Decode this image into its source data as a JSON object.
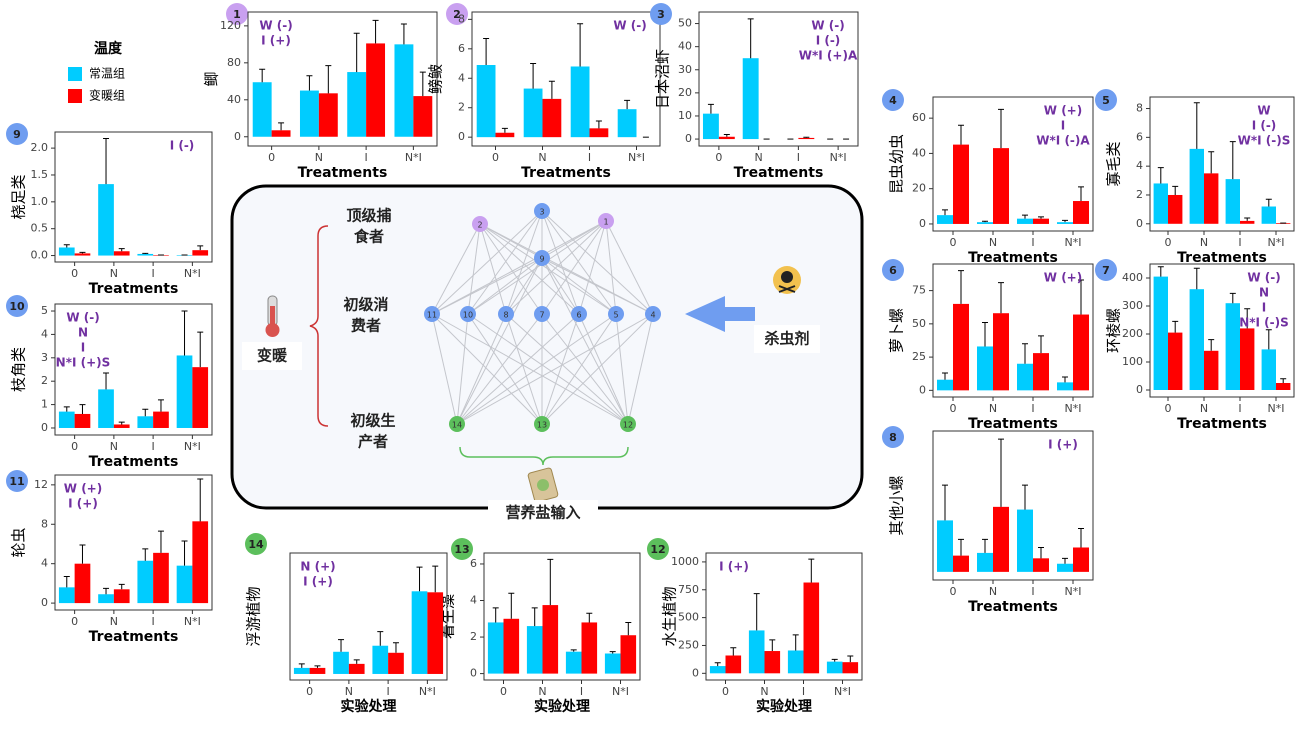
{
  "legend": {
    "title": "温度"
  },
  "chart_data": [
    {
      "type": "bar",
      "label": "1",
      "badge_color": "#c9a0f0",
      "ylabel": "鲫",
      "xlabel": "Treatments",
      "categories": [
        "0",
        "N",
        "I",
        "N*I"
      ],
      "series": [
        {
          "name": "常温组",
          "color": "#00ccff",
          "values": [
            59,
            50,
            70,
            100
          ],
          "errors": [
            14,
            16,
            42,
            22
          ]
        },
        {
          "name": "变暖组",
          "color": "#ff0000",
          "values": [
            7,
            47,
            101,
            44
          ],
          "errors": [
            8,
            30,
            25,
            26
          ]
        }
      ],
      "ylim": [
        -10,
        135
      ],
      "yticks": [
        0,
        40,
        80,
        120
      ],
      "annotations": [
        "W (-)",
        "I (+)"
      ],
      "annotation_corner": "top-left"
    },
    {
      "type": "bar",
      "label": "2",
      "badge_color": "#c9a0f0",
      "ylabel": "鳑鲏",
      "xlabel": "Treatments",
      "categories": [
        "0",
        "N",
        "I",
        "N*I"
      ],
      "series": [
        {
          "name": "常温组",
          "color": "#00ccff",
          "values": [
            4.9,
            3.3,
            4.8,
            1.9
          ],
          "errors": [
            1.8,
            1.7,
            2.9,
            0.6
          ]
        },
        {
          "name": "变暖组",
          "color": "#ff0000",
          "values": [
            0.3,
            2.6,
            0.6,
            0
          ],
          "errors": [
            0.3,
            1.2,
            0.5,
            0
          ]
        }
      ],
      "ylim": [
        -0.6,
        8.5
      ],
      "yticks": [
        0,
        2,
        4,
        6,
        8
      ],
      "annotations": [
        "W (-)"
      ],
      "annotation_corner": "top-right"
    },
    {
      "type": "bar",
      "label": "3",
      "badge_color": "#6f9df0",
      "ylabel": "日本沼虾",
      "xlabel": "Treatments",
      "categories": [
        "0",
        "N",
        "I",
        "N*I"
      ],
      "series": [
        {
          "name": "常温组",
          "color": "#00ccff",
          "values": [
            11,
            35,
            0,
            0
          ],
          "errors": [
            4,
            17,
            0,
            0
          ]
        },
        {
          "name": "变暖组",
          "color": "#ff0000",
          "values": [
            1,
            0,
            0.5,
            0
          ],
          "errors": [
            1,
            0,
            0.3,
            0
          ]
        }
      ],
      "ylim": [
        -3,
        55
      ],
      "yticks": [
        0,
        10,
        20,
        30,
        40,
        50
      ],
      "annotations": [
        "W (-)",
        "I (-)",
        "W*I (+)A"
      ],
      "annotation_corner": "top-right"
    },
    {
      "type": "bar",
      "label": "4",
      "badge_color": "#6f9df0",
      "ylabel": "昆虫幼虫",
      "xlabel": "Treatments",
      "categories": [
        "0",
        "N",
        "I",
        "N*I"
      ],
      "series": [
        {
          "name": "常温组",
          "color": "#00ccff",
          "values": [
            5,
            1,
            3,
            1
          ],
          "errors": [
            3,
            0.5,
            2,
            1
          ]
        },
        {
          "name": "变暖组",
          "color": "#ff0000",
          "values": [
            45,
            43,
            3,
            13
          ],
          "errors": [
            11,
            22,
            1,
            8
          ]
        }
      ],
      "ylim": [
        -4,
        72
      ],
      "yticks": [
        0,
        20,
        40,
        60
      ],
      "annotations": [
        "W (+)",
        "I",
        "W*I (-)A"
      ],
      "annotation_corner": "top-right"
    },
    {
      "type": "bar",
      "label": "5",
      "badge_color": "#6f9df0",
      "ylabel": "寡毛类",
      "xlabel": "Treatments",
      "categories": [
        "0",
        "N",
        "I",
        "N*I"
      ],
      "series": [
        {
          "name": "常温组",
          "color": "#00ccff",
          "values": [
            2.8,
            5.2,
            3.1,
            1.2
          ],
          "errors": [
            1.1,
            3.2,
            2.6,
            0.5
          ]
        },
        {
          "name": "变暖组",
          "color": "#ff0000",
          "values": [
            2.0,
            3.5,
            0.2,
            0.05
          ],
          "errors": [
            0.6,
            1.5,
            0.2,
            0
          ]
        }
      ],
      "ylim": [
        -0.5,
        8.8
      ],
      "yticks": [
        0,
        2,
        4,
        6,
        8
      ],
      "annotations": [
        "W",
        "I (-)",
        "W*I (-)S"
      ],
      "annotation_corner": "top-right"
    },
    {
      "type": "bar",
      "label": "6",
      "badge_color": "#6f9df0",
      "ylabel": "萝卜螺",
      "xlabel": "Treatments",
      "categories": [
        "0",
        "N",
        "I",
        "N*I"
      ],
      "series": [
        {
          "name": "常温组",
          "color": "#00ccff",
          "values": [
            8,
            33,
            20,
            6
          ],
          "errors": [
            5,
            18,
            15,
            4
          ]
        },
        {
          "name": "变暖组",
          "color": "#ff0000",
          "values": [
            65,
            58,
            28,
            57
          ],
          "errors": [
            25,
            23,
            13,
            26
          ]
        }
      ],
      "ylim": [
        -5,
        95
      ],
      "yticks": [
        0,
        25,
        50,
        75
      ],
      "annotations": [
        "W (+)"
      ],
      "annotation_corner": "top-right"
    },
    {
      "type": "bar",
      "label": "7",
      "badge_color": "#6f9df0",
      "ylabel": "环棱螺",
      "xlabel": "Treatments",
      "categories": [
        "0",
        "N",
        "I",
        "N*I"
      ],
      "series": [
        {
          "name": "常温组",
          "color": "#00ccff",
          "values": [
            405,
            360,
            310,
            145
          ],
          "errors": [
            35,
            75,
            35,
            70
          ]
        },
        {
          "name": "变暖组",
          "color": "#ff0000",
          "values": [
            205,
            140,
            220,
            25
          ],
          "errors": [
            40,
            40,
            70,
            15
          ]
        }
      ],
      "ylim": [
        -25,
        450
      ],
      "yticks": [
        0,
        100,
        200,
        300,
        400
      ],
      "annotations": [
        "W (-)",
        "N",
        "I",
        "N*I (-)S"
      ],
      "annotation_corner": "top-right"
    },
    {
      "type": "bar",
      "label": "8",
      "badge_color": "#6f9df0",
      "ylabel": "其他小螺",
      "xlabel": "Treatments",
      "categories": [
        "0",
        "N",
        "I",
        "N*I"
      ],
      "series": [
        {
          "name": "常温组",
          "color": "#00ccff",
          "values": [
            19,
            7,
            23,
            3
          ],
          "errors": [
            13,
            5,
            9,
            2
          ]
        },
        {
          "name": "变暖组",
          "color": "#ff0000",
          "values": [
            6,
            24,
            5,
            9
          ],
          "errors": [
            6,
            25,
            4,
            7
          ]
        }
      ],
      "ylim": [
        -3,
        52
      ],
      "annotations": [
        "I (+)"
      ],
      "annotation_corner": "top-right"
    },
    {
      "type": "bar",
      "label": "9",
      "badge_color": "#6f9df0",
      "ylabel": "桡足类",
      "xlabel": "Treatments",
      "categories": [
        "0",
        "N",
        "I",
        "N*I"
      ],
      "series": [
        {
          "name": "常温组",
          "color": "#00ccff",
          "values": [
            0.15,
            1.33,
            0.03,
            0.01
          ],
          "errors": [
            0.05,
            0.85,
            0.01,
            0
          ]
        },
        {
          "name": "变暖组",
          "color": "#ff0000",
          "values": [
            0.04,
            0.08,
            0.01,
            0.1
          ],
          "errors": [
            0.02,
            0.05,
            0,
            0.08
          ]
        }
      ],
      "ylim": [
        -0.12,
        2.3
      ],
      "yticks": [
        {
          "value": 0,
          "label": "0.0"
        },
        {
          "value": 0.5,
          "label": "0.5"
        },
        {
          "value": 1,
          "label": "1.0"
        },
        {
          "value": 1.5,
          "label": "1.5"
        },
        {
          "value": 2,
          "label": "2.0"
        }
      ],
      "annotations": [
        "I (-)"
      ],
      "annotation_corner": "top-right"
    },
    {
      "type": "bar",
      "label": "10",
      "badge_color": "#6f9df0",
      "ylabel": "枝角类",
      "xlabel": "Treatments",
      "categories": [
        "0",
        "N",
        "I",
        "N*I"
      ],
      "series": [
        {
          "name": "常温组",
          "color": "#00ccff",
          "values": [
            0.7,
            1.65,
            0.5,
            3.1
          ],
          "errors": [
            0.2,
            0.7,
            0.3,
            1.9
          ]
        },
        {
          "name": "变暖组",
          "color": "#ff0000",
          "values": [
            0.6,
            0.15,
            0.7,
            2.6
          ],
          "errors": [
            0.4,
            0.1,
            0.5,
            1.5
          ]
        }
      ],
      "ylim": [
        -0.3,
        5.3
      ],
      "yticks": [
        0,
        1,
        2,
        3,
        4,
        5
      ],
      "annotations": [
        "W (-)",
        "N",
        "I",
        "N*I (+)S"
      ],
      "annotation_corner": "top-left"
    },
    {
      "type": "bar",
      "label": "11",
      "badge_color": "#6f9df0",
      "ylabel": "轮虫",
      "xlabel": "Treatments",
      "categories": [
        "0",
        "N",
        "I",
        "N*I"
      ],
      "series": [
        {
          "name": "常温组",
          "color": "#00ccff",
          "values": [
            1.6,
            0.9,
            4.3,
            3.8
          ],
          "errors": [
            1.1,
            0.6,
            1.2,
            2.5
          ]
        },
        {
          "name": "变暖组",
          "color": "#ff0000",
          "values": [
            4,
            1.4,
            5.1,
            8.3
          ],
          "errors": [
            1.9,
            0.5,
            2.2,
            4.3
          ]
        }
      ],
      "ylim": [
        -0.7,
        13
      ],
      "yticks": [
        0,
        4,
        8,
        12
      ],
      "annotations": [
        "W (+)",
        "I (+)"
      ],
      "annotation_corner": "top-left"
    },
    {
      "type": "bar",
      "label": "12",
      "badge_color": "#5cbf5c",
      "ylabel": "水生植物",
      "xlabel": "实验处理",
      "categories": [
        "0",
        "N",
        "I",
        "N*I"
      ],
      "series": [
        {
          "name": "常温组",
          "color": "#00ccff",
          "values": [
            65,
            385,
            205,
            105
          ],
          "errors": [
            30,
            330,
            140,
            20
          ]
        },
        {
          "name": "变暖组",
          "color": "#ff0000",
          "values": [
            160,
            200,
            815,
            100
          ],
          "errors": [
            70,
            100,
            210,
            55
          ]
        }
      ],
      "ylim": [
        -60,
        1080
      ],
      "yticks": [
        0,
        250,
        500,
        750,
        1000
      ],
      "annotations": [
        "I (+)"
      ],
      "annotation_corner": "top-left"
    },
    {
      "type": "bar",
      "label": "13",
      "badge_color": "#5cbf5c",
      "ylabel": "着生藻",
      "xlabel": "实验处理",
      "categories": [
        "0",
        "N",
        "I",
        "N*I"
      ],
      "series": [
        {
          "name": "常温组",
          "color": "#00ccff",
          "values": [
            2.8,
            2.6,
            1.2,
            1.1
          ],
          "errors": [
            0.8,
            1.0,
            0.1,
            0.1
          ]
        },
        {
          "name": "变暖组",
          "color": "#ff0000",
          "values": [
            3.0,
            3.75,
            2.8,
            2.1
          ],
          "errors": [
            1.4,
            2.5,
            0.5,
            0.7
          ]
        }
      ],
      "ylim": [
        -0.35,
        6.6
      ],
      "yticks": [
        0,
        2,
        4,
        6
      ],
      "annotations": [],
      "annotation_corner": "top-left"
    },
    {
      "type": "bar",
      "label": "14",
      "badge_color": "#5cbf5c",
      "ylabel": "浮游植物",
      "xlabel": "实验处理",
      "categories": [
        "0",
        "N",
        "I",
        "N*I"
      ],
      "series": [
        {
          "name": "常温组",
          "color": "#00ccff",
          "values": [
            3,
            11,
            14,
            41
          ],
          "errors": [
            2,
            6,
            7,
            12
          ]
        },
        {
          "name": "变暖组",
          "color": "#ff0000",
          "values": [
            3,
            5,
            10.5,
            40.5
          ],
          "errors": [
            1,
            2,
            5,
            13
          ]
        }
      ],
      "ylim": [
        -3,
        60
      ],
      "annotations": [
        "N (+)",
        "I (+)"
      ],
      "annotation_corner": "top-left"
    }
  ],
  "diagram": {
    "levels": [
      {
        "lines": [
          "顶级捕",
          "食者"
        ]
      },
      {
        "lines": [
          "初级消",
          "费者"
        ]
      },
      {
        "lines": [
          "初级生",
          "产者"
        ]
      }
    ],
    "drivers": {
      "warming": "变暖",
      "pesticide": "杀虫剂",
      "nutrients": "营养盐输入"
    },
    "nodes": [
      {
        "label": "1",
        "color": "#c9a0f0"
      },
      {
        "label": "2",
        "color": "#c9a0f0"
      },
      {
        "label": "3",
        "color": "#6f9df0"
      },
      {
        "label": "4",
        "color": "#6f9df0"
      },
      {
        "label": "5",
        "color": "#6f9df0"
      },
      {
        "label": "6",
        "color": "#6f9df0"
      },
      {
        "label": "7",
        "color": "#6f9df0"
      },
      {
        "label": "8",
        "color": "#6f9df0"
      },
      {
        "label": "9",
        "color": "#6f9df0"
      },
      {
        "label": "10",
        "color": "#6f9df0"
      },
      {
        "label": "11",
        "color": "#6f9df0"
      },
      {
        "label": "12",
        "color": "#5cbf5c"
      },
      {
        "label": "13",
        "color": "#5cbf5c"
      },
      {
        "label": "14",
        "color": "#5cbf5c"
      }
    ]
  }
}
